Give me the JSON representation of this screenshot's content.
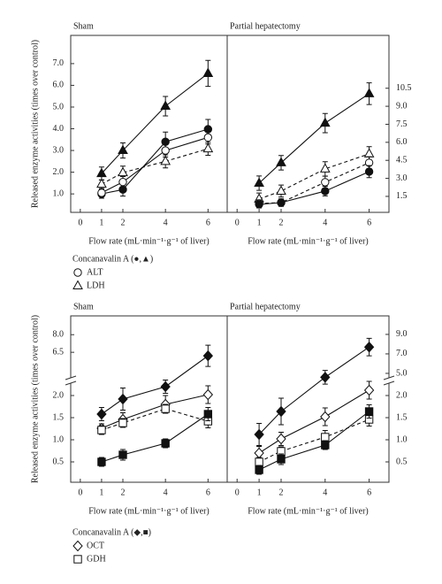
{
  "chart_data": [
    {
      "type": "line",
      "title": "Sham",
      "ylabel": "Released enzyme activities (times over control)",
      "xlabel": "Flow rate (mL·min⁻¹·g⁻¹ of liver)",
      "x": [
        1,
        2,
        4,
        6
      ],
      "xticks": [
        0,
        1,
        2,
        4,
        6
      ],
      "xlim": [
        -0.45,
        6.9
      ],
      "y_side": "left",
      "ylim": [
        0.15,
        8.3
      ],
      "yticks": [
        {
          "value": 1,
          "label": "1.0"
        },
        {
          "value": 2,
          "label": "2.0"
        },
        {
          "value": 3,
          "label": "3.0"
        },
        {
          "value": 4,
          "label": "4.0"
        },
        {
          "value": 5,
          "label": "5.0"
        },
        {
          "value": 6,
          "label": "6.0"
        },
        {
          "value": 7,
          "label": "7.0"
        }
      ],
      "series": [
        {
          "marker": "triangle",
          "filled": true,
          "line_style": "solid",
          "color": "#111",
          "values": [
            1.94,
            3.0,
            5.04,
            6.55
          ],
          "errors": [
            0.3,
            0.35,
            0.45,
            0.6
          ]
        },
        {
          "marker": "triangle",
          "filled": false,
          "line_style": "dashed",
          "color": "#111",
          "values": [
            1.45,
            1.98,
            2.5,
            3.08
          ],
          "errors": [
            0.2,
            0.3,
            0.3,
            0.3
          ]
        },
        {
          "marker": "circle",
          "filled": true,
          "line_style": "solid",
          "color": "#111",
          "values": [
            1.0,
            1.2,
            3.4,
            3.98
          ],
          "errors": [
            0.2,
            0.3,
            0.45,
            0.45
          ]
        },
        {
          "marker": "circle",
          "filled": false,
          "line_style": "solid",
          "color": "#111",
          "values": [
            1.05,
            1.55,
            3.0,
            3.6
          ],
          "errors": [
            0.15,
            0.25,
            0.3,
            0.3
          ]
        }
      ]
    },
    {
      "type": "line",
      "title": "Partial hepatectomy",
      "xlabel": "Flow rate (mL·min⁻¹·g⁻¹ of liver)",
      "x": [
        1,
        2,
        4,
        6
      ],
      "xticks": [
        0,
        1,
        2,
        4,
        6
      ],
      "xlim": [
        -0.45,
        6.9
      ],
      "y_side": "right",
      "ylim": [
        0.17,
        14.9
      ],
      "yticks": [
        1.5,
        {
          "value": 3,
          "label": "3.0"
        },
        4.5,
        {
          "value": 6,
          "label": "6.0"
        },
        7.5,
        {
          "value": 9,
          "label": "9.0"
        },
        10.5
      ],
      "series": [
        {
          "marker": "triangle",
          "filled": true,
          "line_style": "solid",
          "color": "#111",
          "values": [
            2.6,
            4.3,
            7.6,
            10.05
          ],
          "errors": [
            0.6,
            0.6,
            0.8,
            0.9
          ]
        },
        {
          "marker": "triangle",
          "filled": false,
          "line_style": "dashed",
          "color": "#111",
          "values": [
            1.28,
            1.94,
            3.79,
            5.04
          ],
          "errors": [
            0.5,
            0.5,
            0.6,
            0.6
          ]
        },
        {
          "marker": "circle",
          "filled": false,
          "line_style": "dashed",
          "color": "#111",
          "values": [
            0.91,
            0.98,
            2.68,
            4.3
          ],
          "errors": [
            0.3,
            0.3,
            0.5,
            0.5
          ]
        },
        {
          "marker": "circle",
          "filled": true,
          "line_style": "solid",
          "color": "#111",
          "values": [
            0.84,
            0.98,
            1.94,
            3.56
          ],
          "errors": [
            0.3,
            0.3,
            0.4,
            0.5
          ]
        }
      ]
    },
    {
      "type": "line",
      "title": "Sham",
      "ylabel": "Released enzyme activities (times over control)",
      "xlabel": "Flow rate (mL·min⁻¹·g⁻¹ of liver)",
      "x": [
        1,
        2,
        4,
        6
      ],
      "xticks": [
        0,
        1,
        2,
        4,
        6
      ],
      "xlim": [
        -0.45,
        6.9
      ],
      "y_side": "left",
      "y_segments": [
        {
          "ylim": [
            0.04,
            2.34
          ],
          "yticks": [
            0.5,
            {
              "value": 1,
              "label": "1.0"
            },
            1.5,
            {
              "value": 2,
              "label": "2.0"
            }
          ]
        },
        {
          "ylim": [
            4.1,
            9.6
          ],
          "yticks": [
            6.5,
            {
              "value": 8,
              "label": "8.0"
            }
          ]
        }
      ],
      "series": [
        {
          "marker": "diamond",
          "filled": true,
          "line_style": "solid",
          "color": "#111",
          "values": [
            1.58,
            1.92,
            2.2,
            6.2
          ],
          "errors": [
            0.15,
            0.25,
            0.15,
            0.9
          ]
        },
        {
          "marker": "diamond",
          "filled": false,
          "line_style": "solid",
          "color": "#111",
          "values": [
            1.26,
            1.46,
            1.8,
            2.02
          ],
          "errors": [
            0.1,
            0.15,
            0.2,
            0.2
          ]
        },
        {
          "marker": "square",
          "filled": false,
          "line_style": "dashed",
          "color": "#111",
          "values": [
            1.22,
            1.38,
            1.7,
            1.42
          ],
          "errors": [
            0.1,
            0.1,
            0.1,
            0.15
          ]
        },
        {
          "marker": "square",
          "filled": true,
          "line_style": "solid",
          "color": "#111",
          "values": [
            0.5,
            0.66,
            0.92,
            1.58
          ],
          "errors": [
            0.1,
            0.12,
            0.1,
            0.15
          ]
        }
      ]
    },
    {
      "type": "line",
      "title": "Partial hepatectomy",
      "xlabel": "Flow rate (mL·min⁻¹·g⁻¹ of liver)",
      "x": [
        1,
        2,
        4,
        6
      ],
      "xticks": [
        0,
        1,
        2,
        4,
        6
      ],
      "xlim": [
        -0.45,
        6.9
      ],
      "y_side": "right",
      "y_segments": [
        {
          "ylim": [
            0.04,
            2.34
          ],
          "yticks": [
            0.5,
            {
              "value": 1,
              "label": "1.0"
            },
            1.5,
            {
              "value": 2,
              "label": "2.0"
            }
          ]
        },
        {
          "ylim": [
            4.27,
            10.9
          ],
          "yticks": [
            {
              "value": 5,
              "label": "5.0"
            },
            {
              "value": 7,
              "label": "7.0"
            },
            {
              "value": 9,
              "label": "9.0"
            }
          ]
        }
      ],
      "series": [
        {
          "marker": "diamond",
          "filled": true,
          "line_style": "solid",
          "color": "#111",
          "values": [
            1.12,
            1.64,
            4.6,
            7.7
          ],
          "errors": [
            0.25,
            0.3,
            0.7,
            0.9
          ]
        },
        {
          "marker": "diamond",
          "filled": false,
          "line_style": "solid",
          "color": "#111",
          "values": [
            0.7,
            1.02,
            1.52,
            2.12
          ],
          "errors": [
            0.15,
            0.15,
            0.2,
            0.2
          ]
        },
        {
          "marker": "square",
          "filled": false,
          "line_style": "dashed",
          "color": "#111",
          "values": [
            0.5,
            0.74,
            1.06,
            1.46
          ],
          "errors": [
            0.1,
            0.1,
            0.15,
            0.15
          ]
        },
        {
          "marker": "square",
          "filled": true,
          "line_style": "solid",
          "color": "#111",
          "values": [
            0.32,
            0.56,
            0.88,
            1.64
          ],
          "errors": [
            0.1,
            0.12,
            0.1,
            0.15
          ]
        }
      ]
    }
  ],
  "legends": [
    {
      "title": "Concanavalin A (●,▲)",
      "entries": [
        {
          "marker": "circle",
          "label": "ALT"
        },
        {
          "marker": "triangle",
          "label": "LDH"
        }
      ]
    },
    {
      "title": "Concanavalin A (◆,■)",
      "entries": [
        {
          "marker": "diamond",
          "label": "OCT"
        },
        {
          "marker": "square",
          "label": "GDH"
        }
      ]
    }
  ]
}
